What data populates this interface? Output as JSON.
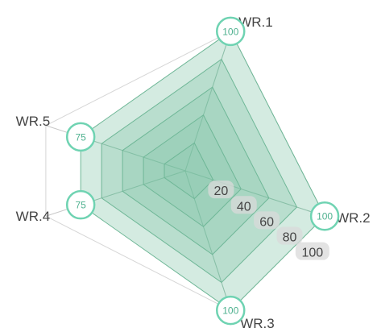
{
  "chart_data": {
    "type": "radar",
    "title": "",
    "categories": [
      "WR.1",
      "WR.2",
      "WR.3",
      "WR.4",
      "WR.5"
    ],
    "series": [
      {
        "values": [
          100,
          100,
          100,
          75,
          75
        ]
      }
    ],
    "rlim": [
      0,
      100
    ],
    "r_ticks": [
      20,
      40,
      60,
      80,
      100
    ],
    "grid": true,
    "legend": "none",
    "colors": {
      "fill": "#8fcbb1",
      "band_border": "#6fb797",
      "marker_ring": "#6fd3b2",
      "marker_text": "#4fb18f",
      "axis_line": "#c8c8c8",
      "label": "#444444",
      "tick_bg": "#d9d9d9",
      "tick_text": "#444444"
    }
  }
}
